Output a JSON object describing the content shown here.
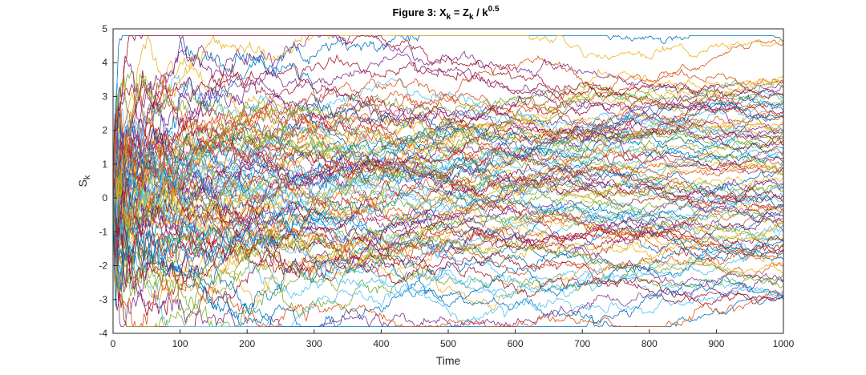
{
  "chart_data": {
    "type": "line",
    "title": {
      "prefix": "Figure 3: X",
      "sub1": "k",
      "mid": " = Z",
      "sub2": "k",
      "slash": " / k",
      "sup": "0.5"
    },
    "xlabel": "Time",
    "ylabel": {
      "main": "S",
      "sub": "k"
    },
    "xlim": [
      0,
      1000
    ],
    "ylim": [
      -4,
      5
    ],
    "xticks": [
      0,
      100,
      200,
      300,
      400,
      500,
      600,
      700,
      800,
      900,
      1000
    ],
    "yticks": [
      -4,
      -3,
      -2,
      -1,
      0,
      1,
      2,
      3,
      4,
      5
    ],
    "grid": false,
    "legend": "none",
    "num_series": 100,
    "num_steps": 1000,
    "colors": [
      "#0072BD",
      "#D95319",
      "#EDB120",
      "#7E2F8E",
      "#77AC30",
      "#4DBEEE",
      "#A2142F"
    ],
    "series_endpoints": [
      4.6,
      3.4,
      3.3,
      3.0,
      2.9,
      2.8,
      2.6,
      2.4,
      2.2,
      2.0,
      1.8,
      1.6,
      1.4,
      1.2,
      1.0,
      0.8,
      0.6,
      0.4,
      0.2,
      0.0,
      -0.2,
      -0.4,
      -0.6,
      -0.8,
      -1.0,
      -1.2,
      -1.4,
      -1.6,
      -1.8,
      -2.0,
      -2.2,
      -2.4,
      -2.6,
      -2.8,
      -2.9,
      -3.0
    ]
  }
}
